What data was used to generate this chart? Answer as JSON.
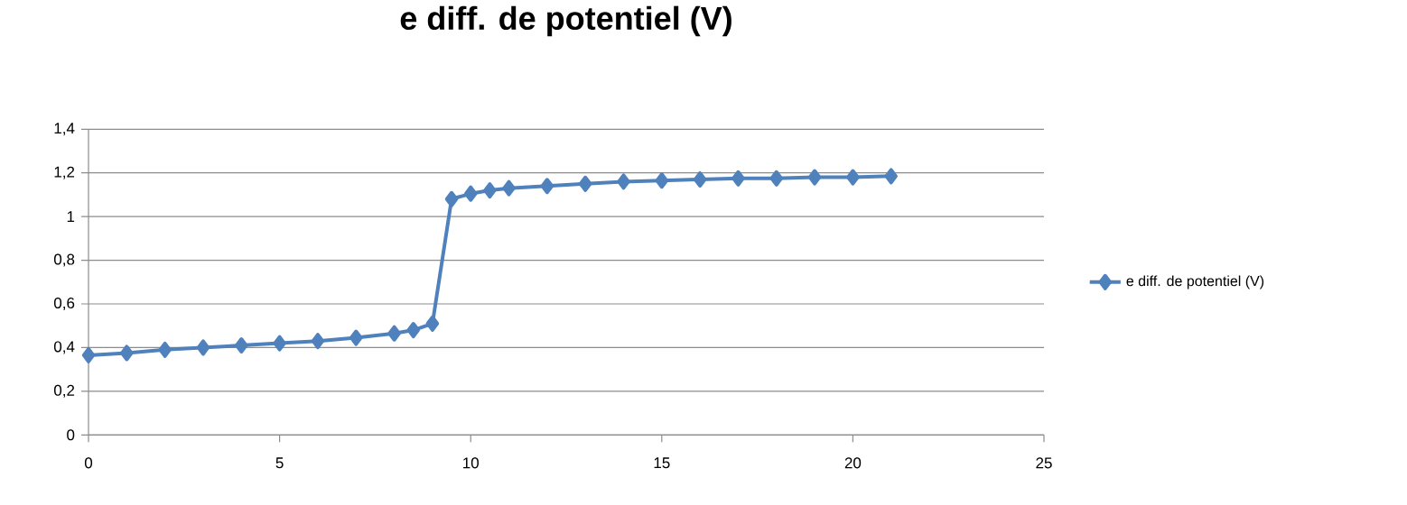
{
  "chart_data": {
    "type": "line",
    "title": "e diff. de potentiel (V)",
    "x": [
      0,
      1,
      2,
      3,
      4,
      5,
      6,
      7,
      8,
      8.5,
      9,
      9.5,
      10,
      10.5,
      11,
      12,
      13,
      14,
      15,
      16,
      17,
      18,
      19,
      20,
      21
    ],
    "series": [
      {
        "name": "e diff. de potentiel (V)",
        "color": "#4f81bd",
        "values": [
          0.365,
          0.375,
          0.39,
          0.4,
          0.41,
          0.42,
          0.43,
          0.445,
          0.465,
          0.48,
          0.51,
          1.08,
          1.105,
          1.12,
          1.13,
          1.14,
          1.15,
          1.16,
          1.165,
          1.17,
          1.175,
          1.175,
          1.18,
          1.18,
          1.185
        ]
      }
    ],
    "xlim": [
      0,
      25
    ],
    "xticks": [
      0,
      5,
      10,
      15,
      20,
      25
    ],
    "ylim": [
      0,
      1.4
    ],
    "yticks": [
      0,
      {
        "value": 0.2,
        "label": "0,2"
      },
      {
        "value": 0.4,
        "label": "0,4"
      },
      {
        "value": 0.6,
        "label": "0,6"
      },
      {
        "value": 0.8,
        "label": "0,8"
      },
      1,
      {
        "value": 1.2,
        "label": "1,2"
      },
      {
        "value": 1.4,
        "label": "1,4"
      }
    ],
    "grid": "y",
    "legend": "right",
    "marker": "diamond",
    "line_style": "solid"
  }
}
